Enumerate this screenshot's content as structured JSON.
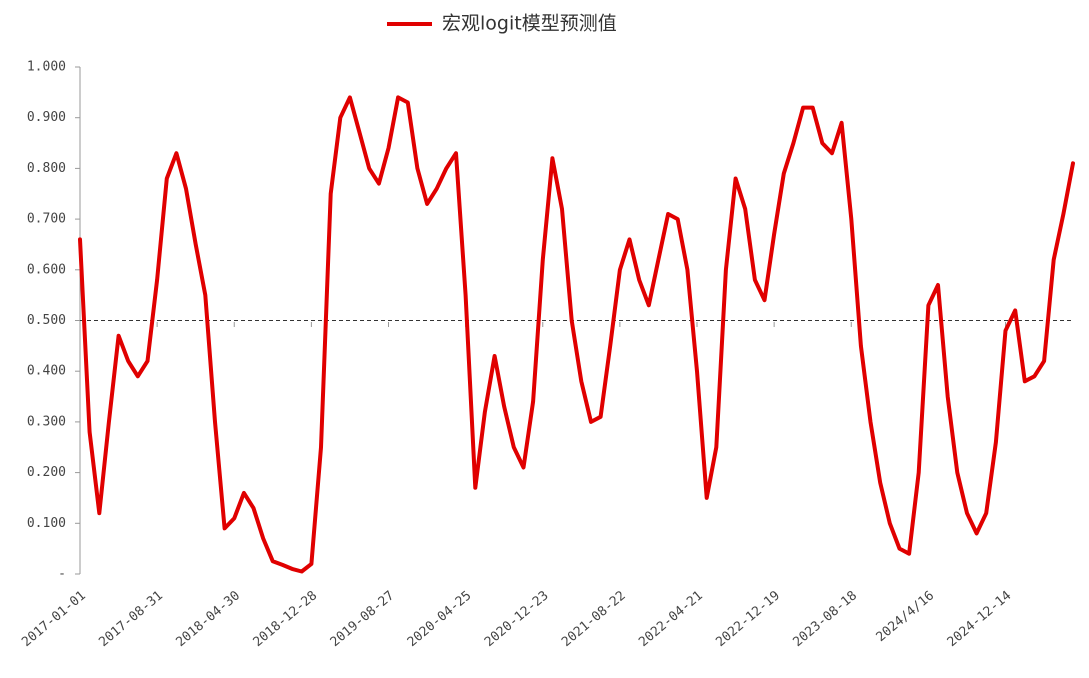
{
  "chart_data": {
    "type": "line",
    "series": [
      {
        "name": "宏观logit模型预测值",
        "color": "#e00000",
        "values": [
          0.66,
          0.28,
          0.12,
          0.3,
          0.47,
          0.42,
          0.39,
          0.42,
          0.58,
          0.78,
          0.83,
          0.76,
          0.65,
          0.55,
          0.3,
          0.09,
          0.11,
          0.16,
          0.13,
          0.07,
          0.025,
          0.018,
          0.01,
          0.005,
          0.02,
          0.25,
          0.75,
          0.9,
          0.94,
          0.87,
          0.8,
          0.77,
          0.84,
          0.94,
          0.93,
          0.8,
          0.73,
          0.76,
          0.8,
          0.83,
          0.55,
          0.17,
          0.32,
          0.43,
          0.33,
          0.25,
          0.21,
          0.34,
          0.62,
          0.82,
          0.72,
          0.5,
          0.38,
          0.3,
          0.31,
          0.45,
          0.6,
          0.66,
          0.58,
          0.53,
          0.62,
          0.71,
          0.7,
          0.6,
          0.4,
          0.15,
          0.25,
          0.6,
          0.78,
          0.72,
          0.58,
          0.54,
          0.67,
          0.79,
          0.85,
          0.92,
          0.92,
          0.85,
          0.83,
          0.89,
          0.7,
          0.45,
          0.3,
          0.18,
          0.1,
          0.05,
          0.04,
          0.2,
          0.53,
          0.57,
          0.35,
          0.2,
          0.12,
          0.08,
          0.12,
          0.26,
          0.48,
          0.52,
          0.38,
          0.39,
          0.42,
          0.62,
          0.71,
          0.81
        ]
      }
    ],
    "categories": [
      "2017-01-01",
      null,
      null,
      null,
      null,
      null,
      null,
      null,
      "2017-08-31",
      null,
      null,
      null,
      null,
      null,
      null,
      null,
      "2018-04-30",
      null,
      null,
      null,
      null,
      null,
      null,
      null,
      "2018-12-28",
      null,
      null,
      null,
      null,
      null,
      null,
      null,
      "2019-08-27",
      null,
      null,
      null,
      null,
      null,
      null,
      null,
      "2020-04-25",
      null,
      null,
      null,
      null,
      null,
      null,
      null,
      "2020-12-23",
      null,
      null,
      null,
      null,
      null,
      null,
      null,
      "2021-08-22",
      null,
      null,
      null,
      null,
      null,
      null,
      null,
      "2022-04-21",
      null,
      null,
      null,
      null,
      null,
      null,
      null,
      "2022-12-19",
      null,
      null,
      null,
      null,
      null,
      null,
      null,
      "2023-08-18",
      null,
      null,
      null,
      null,
      null,
      null,
      null,
      "2024/4/16",
      null,
      null,
      null,
      null,
      null,
      null,
      null,
      "2024-12-14",
      null,
      null,
      null,
      null,
      null,
      null,
      null
    ],
    "ylim": [
      0,
      1
    ],
    "yticks": [
      {
        "value": 0,
        "label": "-"
      },
      {
        "value": 0.1,
        "label": "0.100"
      },
      {
        "value": 0.2,
        "label": "0.200"
      },
      {
        "value": 0.3,
        "label": "0.300"
      },
      {
        "value": 0.4,
        "label": "0.400"
      },
      {
        "value": 0.5,
        "label": "0.500"
      },
      {
        "value": 0.6,
        "label": "0.600"
      },
      {
        "value": 0.7,
        "label": "0.700"
      },
      {
        "value": 0.8,
        "label": "0.800"
      },
      {
        "value": 0.9,
        "label": "0.900"
      },
      {
        "value": 1,
        "label": "1.000"
      }
    ],
    "reference_line": 0.5,
    "grid": false
  }
}
